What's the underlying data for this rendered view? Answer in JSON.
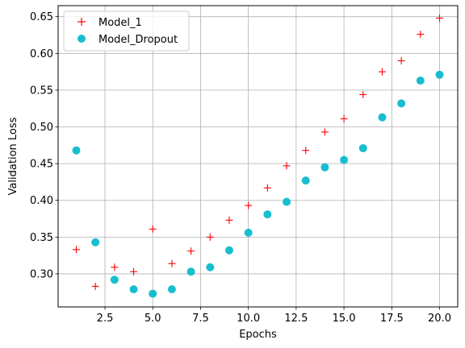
{
  "chart_data": {
    "type": "scatter",
    "xlabel": "Epochs",
    "ylabel": "Validation Loss",
    "xlim": [
      0.05,
      20.95
    ],
    "ylim": [
      0.255,
      0.665
    ],
    "xticks": [
      2.5,
      5.0,
      7.5,
      10.0,
      12.5,
      15.0,
      17.5,
      20.0
    ],
    "xtick_labels": [
      "2.5",
      "5.0",
      "7.5",
      "10.0",
      "12.5",
      "15.0",
      "17.5",
      "20.0"
    ],
    "yticks": [
      0.3,
      0.35,
      0.4,
      0.45,
      0.5,
      0.55,
      0.6,
      0.65
    ],
    "ytick_labels": [
      "0.30",
      "0.35",
      "0.40",
      "0.45",
      "0.50",
      "0.55",
      "0.60",
      "0.65"
    ],
    "grid": true,
    "legend_position": "top-left",
    "x": [
      1,
      2,
      3,
      4,
      5,
      6,
      7,
      8,
      9,
      10,
      11,
      12,
      13,
      14,
      15,
      16,
      17,
      18,
      19,
      20
    ],
    "series": [
      {
        "name": "Model_1",
        "marker": "plus",
        "color": "#ff0000",
        "values": [
          0.333,
          0.283,
          0.309,
          0.303,
          0.361,
          0.314,
          0.331,
          0.35,
          0.373,
          0.393,
          0.417,
          0.447,
          0.468,
          0.493,
          0.511,
          0.544,
          0.575,
          0.59,
          0.626,
          0.648
        ]
      },
      {
        "name": "Model_Dropout",
        "marker": "circle",
        "color": "#17becf",
        "values": [
          0.468,
          0.343,
          0.292,
          0.279,
          0.273,
          0.279,
          0.303,
          0.309,
          0.332,
          0.356,
          0.381,
          0.398,
          0.427,
          0.445,
          0.455,
          0.471,
          0.513,
          0.532,
          0.563,
          0.571
        ]
      }
    ]
  }
}
